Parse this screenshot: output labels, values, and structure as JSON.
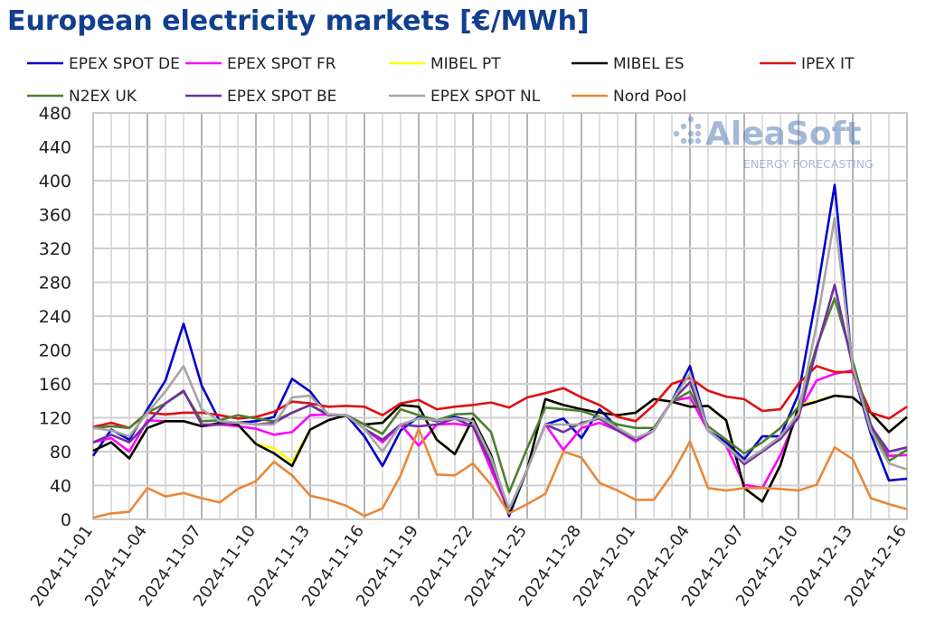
{
  "chart_data": {
    "type": "line",
    "title": "European electricity markets [€/MWh]",
    "xlabel": "",
    "ylabel": "",
    "ylim": [
      0,
      480
    ],
    "yticks": [
      0,
      40,
      80,
      120,
      160,
      200,
      240,
      280,
      320,
      360,
      400,
      440,
      480
    ],
    "grid": true,
    "legend_position": "top",
    "watermark": {
      "brand": "AleaSoft",
      "tagline": "ENERGY FORECASTING"
    },
    "x": [
      "2024-11-01",
      "2024-11-02",
      "2024-11-03",
      "2024-11-04",
      "2024-11-05",
      "2024-11-06",
      "2024-11-07",
      "2024-11-08",
      "2024-11-09",
      "2024-11-10",
      "2024-11-11",
      "2024-11-12",
      "2024-11-13",
      "2024-11-14",
      "2024-11-15",
      "2024-11-16",
      "2024-11-17",
      "2024-11-18",
      "2024-11-19",
      "2024-11-20",
      "2024-11-21",
      "2024-11-22",
      "2024-11-23",
      "2024-11-24",
      "2024-11-25",
      "2024-11-26",
      "2024-11-27",
      "2024-11-28",
      "2024-11-29",
      "2024-11-30",
      "2024-12-01",
      "2024-12-02",
      "2024-12-03",
      "2024-12-04",
      "2024-12-05",
      "2024-12-06",
      "2024-12-07",
      "2024-12-08",
      "2024-12-09",
      "2024-12-10",
      "2024-12-11",
      "2024-12-12",
      "2024-12-13",
      "2024-12-14",
      "2024-12-15",
      "2024-12-16"
    ],
    "xtick_labels": [
      "2024-11-01",
      "2024-11-04",
      "2024-11-07",
      "2024-11-10",
      "2024-11-13",
      "2024-11-16",
      "2024-11-19",
      "2024-11-22",
      "2024-11-25",
      "2024-11-28",
      "2024-12-01",
      "2024-12-04",
      "2024-12-07",
      "2024-12-10",
      "2024-12-13",
      "2024-12-16"
    ],
    "series": [
      {
        "name": "EPEX SPOT DE",
        "color": "#0000cc",
        "values": [
          75,
          106,
          94,
          130,
          164,
          231,
          158,
          116,
          114,
          116,
          121,
          166,
          151,
          123,
          123,
          98,
          63,
          105,
          121,
          116,
          121,
          116,
          73,
          4,
          59,
          112,
          119,
          96,
          130,
          108,
          92,
          107,
          140,
          181,
          105,
          91,
          71,
          98,
          98,
          148,
          265,
          395,
          176,
          101,
          46,
          48
        ]
      },
      {
        "name": "EPEX SPOT FR",
        "color": "#ff00ff",
        "values": [
          91,
          96,
          80,
          117,
          116,
          116,
          110,
          112,
          110,
          107,
          100,
          103,
          123,
          124,
          123,
          107,
          91,
          112,
          87,
          112,
          113,
          110,
          59,
          9,
          59,
          112,
          82,
          108,
          114,
          105,
          92,
          105,
          140,
          144,
          105,
          87,
          41,
          37,
          76,
          126,
          164,
          172,
          176,
          108,
          75,
          76
        ]
      },
      {
        "name": "MIBEL PT",
        "color": "#ffff00",
        "values": [
          81,
          91,
          72,
          108,
          116,
          116,
          110,
          114,
          112,
          89,
          84,
          68,
          106,
          117,
          123,
          112,
          114,
          135,
          133,
          94,
          77,
          119,
          76,
          7,
          59,
          142,
          135,
          130,
          126,
          123,
          126,
          142,
          139,
          133,
          134,
          117,
          37,
          21,
          64,
          135,
          140,
          146,
          144,
          126,
          103,
          121
        ]
      },
      {
        "name": "MIBEL ES",
        "color": "#000000",
        "values": [
          81,
          91,
          72,
          108,
          116,
          116,
          110,
          114,
          112,
          89,
          78,
          63,
          106,
          117,
          123,
          112,
          114,
          135,
          133,
          94,
          77,
          119,
          76,
          7,
          59,
          142,
          135,
          130,
          126,
          123,
          126,
          142,
          139,
          133,
          134,
          117,
          37,
          21,
          64,
          133,
          139,
          146,
          144,
          126,
          103,
          121
        ]
      },
      {
        "name": "IPEX IT",
        "color": "#e01010",
        "values": [
          109,
          114,
          108,
          126,
          124,
          126,
          126,
          123,
          119,
          121,
          127,
          139,
          137,
          133,
          134,
          133,
          123,
          137,
          141,
          130,
          133,
          135,
          138,
          132,
          144,
          149,
          155,
          144,
          135,
          121,
          116,
          135,
          160,
          167,
          152,
          145,
          142,
          128,
          130,
          160,
          181,
          174,
          174,
          126,
          119,
          133
        ]
      },
      {
        "name": "N2EX UK",
        "color": "#4f7f2e",
        "values": [
          108,
          110,
          108,
          126,
          137,
          151,
          116,
          117,
          123,
          119,
          116,
          126,
          135,
          124,
          123,
          112,
          101,
          130,
          123,
          117,
          124,
          125,
          103,
          32,
          84,
          132,
          130,
          128,
          121,
          112,
          108,
          108,
          139,
          151,
          110,
          94,
          78,
          91,
          108,
          133,
          204,
          261,
          187,
          112,
          69,
          82
        ]
      },
      {
        "name": "EPEX SPOT BE",
        "color": "#7030a0",
        "values": [
          91,
          100,
          91,
          114,
          137,
          152,
          112,
          112,
          114,
          112,
          114,
          126,
          135,
          123,
          123,
          107,
          94,
          112,
          110,
          112,
          119,
          110,
          66,
          12,
          59,
          112,
          103,
          114,
          119,
          105,
          94,
          105,
          140,
          162,
          105,
          87,
          65,
          80,
          95,
          120,
          201,
          277,
          180,
          110,
          80,
          85
        ]
      },
      {
        "name": "EPEX SPOT NL",
        "color": "#a6a6a6",
        "values": [
          108,
          105,
          98,
          126,
          151,
          181,
          130,
          116,
          114,
          112,
          112,
          144,
          146,
          124,
          123,
          107,
          80,
          112,
          119,
          117,
          119,
          116,
          73,
          12,
          59,
          112,
          112,
          112,
          121,
          108,
          96,
          105,
          140,
          172,
          105,
          87,
          68,
          82,
          98,
          125,
          230,
          356,
          180,
          105,
          66,
          59
        ]
      },
      {
        "name": "Nord Pool",
        "color": "#e8883a",
        "values": [
          2,
          7,
          9,
          37,
          27,
          31,
          25,
          20,
          36,
          45,
          68,
          52,
          28,
          23,
          16,
          4,
          13,
          52,
          107,
          53,
          52,
          66,
          41,
          7,
          18,
          30,
          80,
          73,
          43,
          34,
          23,
          23,
          53,
          92,
          37,
          34,
          37,
          37,
          36,
          34,
          41,
          85,
          71,
          25,
          18,
          12
        ]
      }
    ]
  }
}
